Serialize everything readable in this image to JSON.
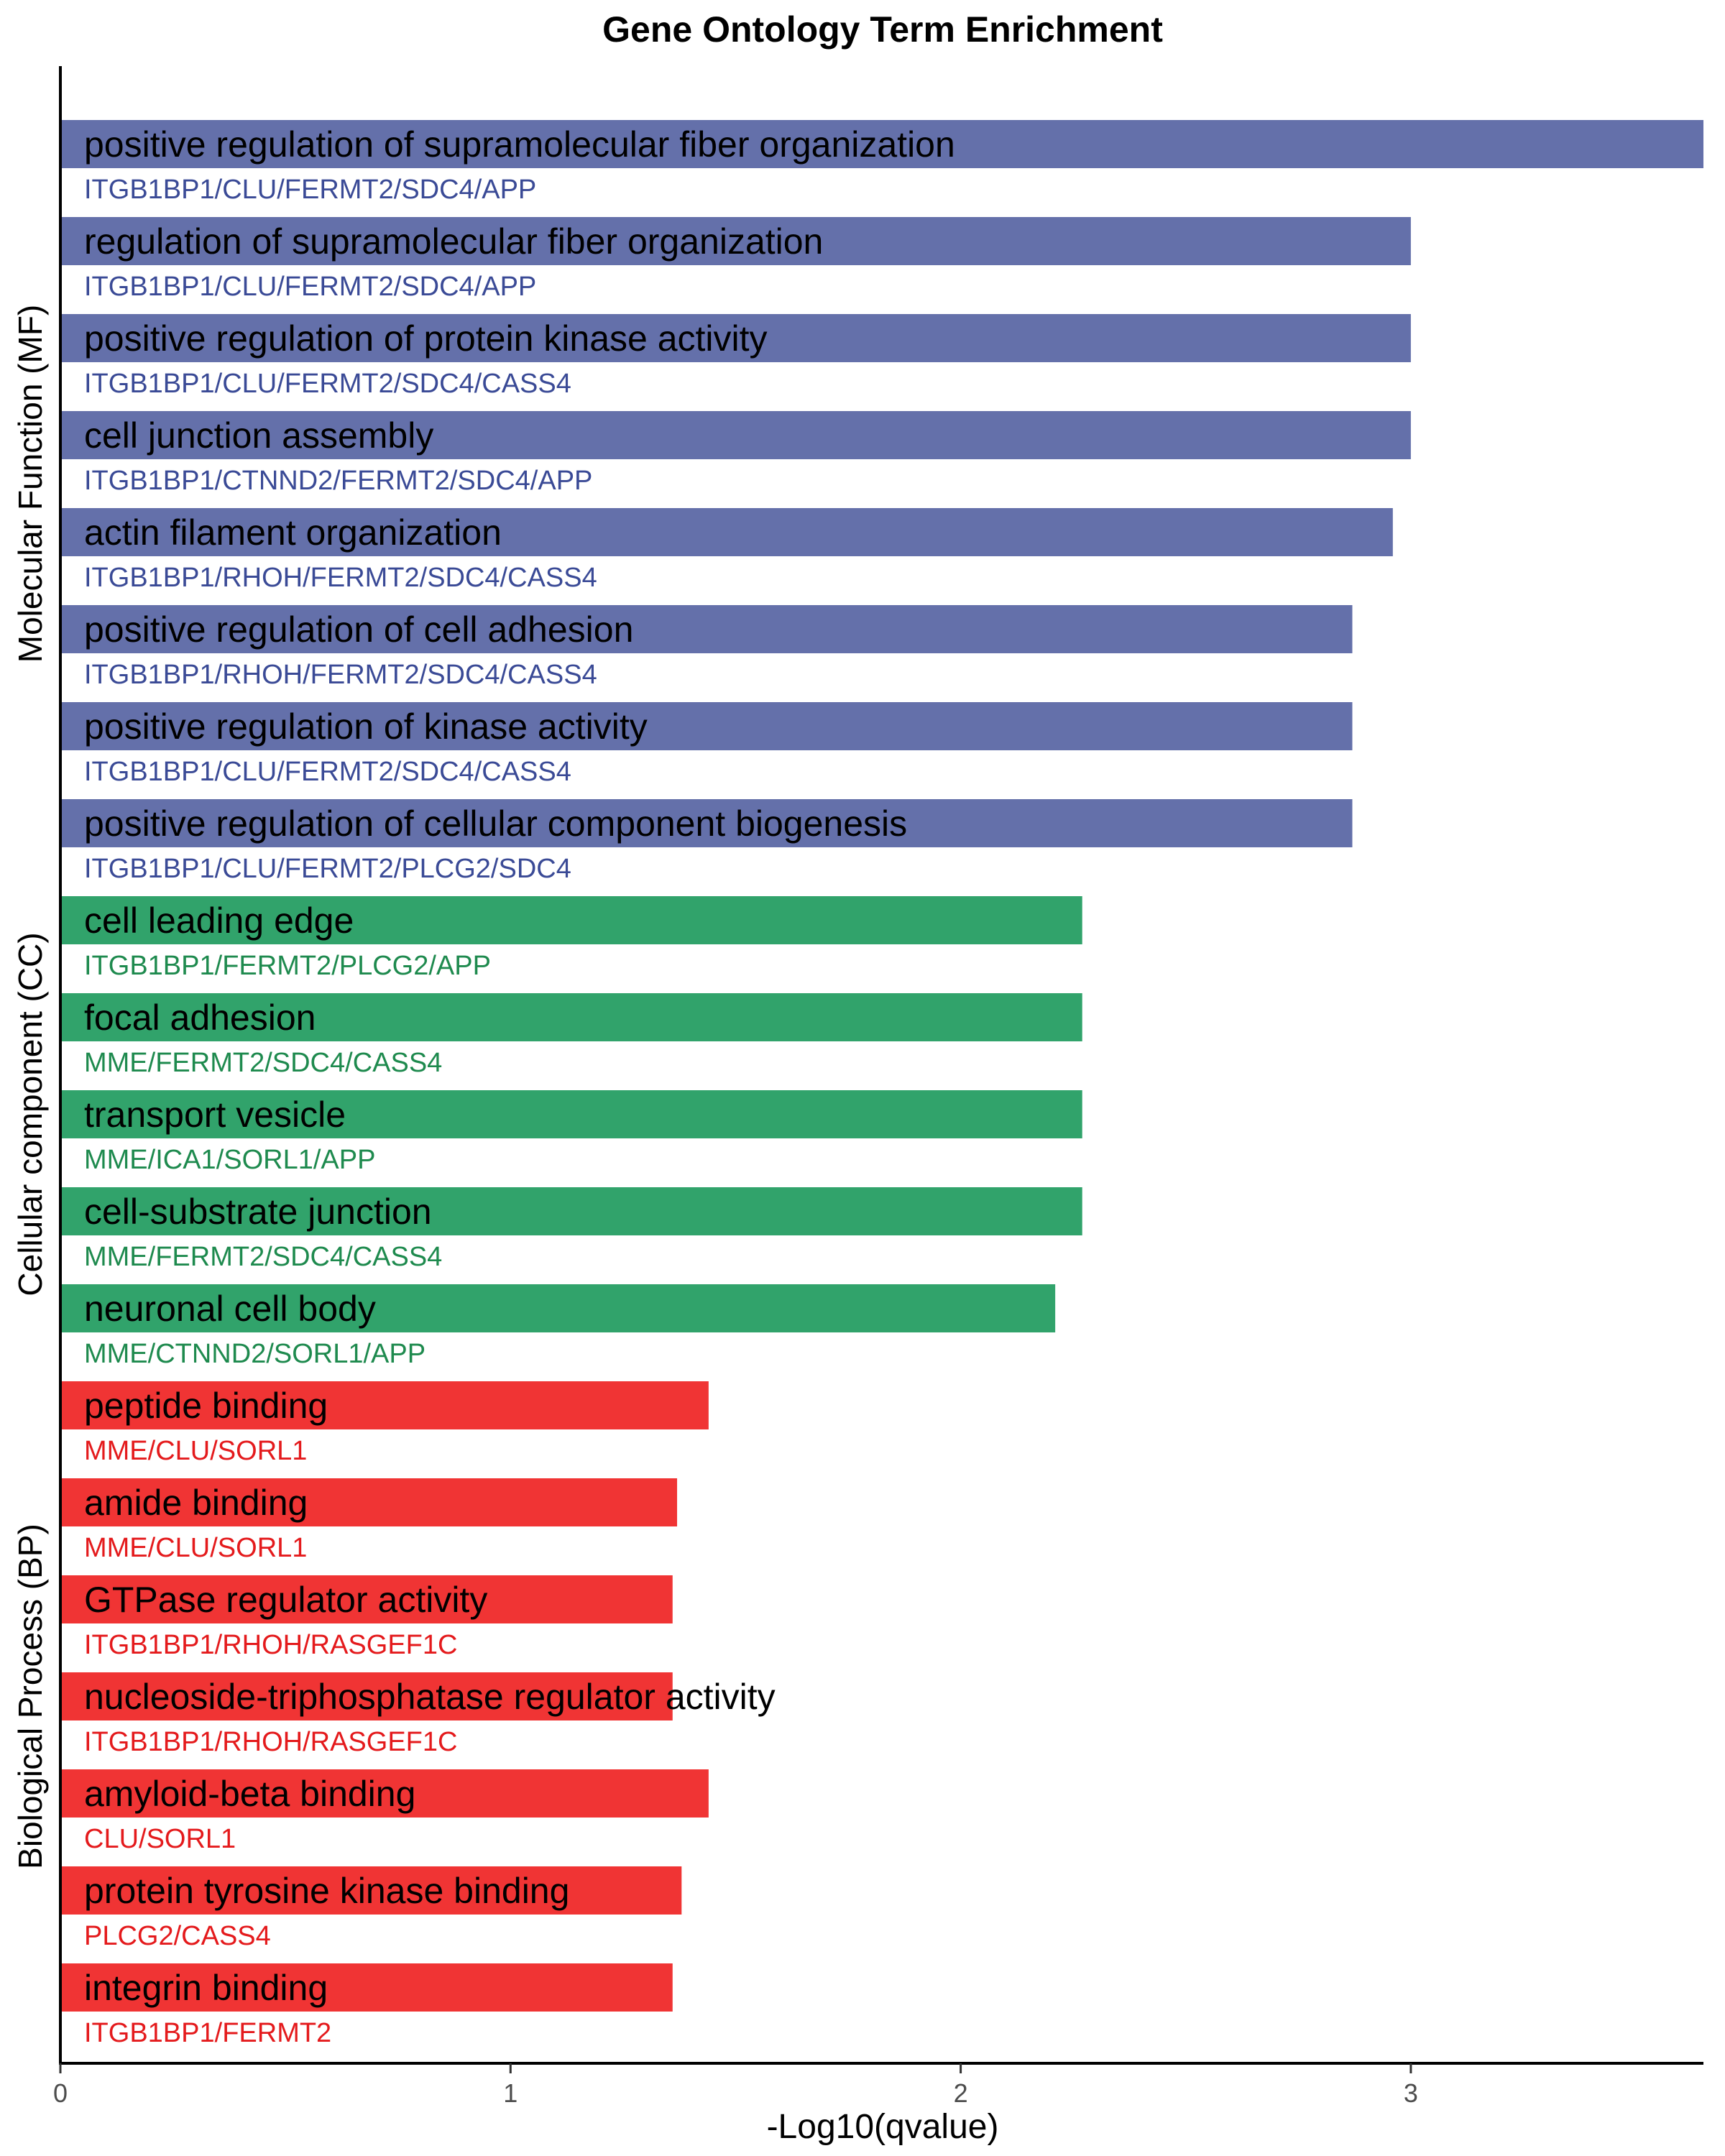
{
  "chart_data": {
    "type": "bar",
    "orientation": "horizontal",
    "title": "Gene Ontology Term Enrichment",
    "xlabel": "-Log10(qvalue)",
    "xlim": [
      0,
      3.65
    ],
    "xticks": [
      0,
      1,
      2,
      3
    ],
    "grid": false,
    "groups": [
      {
        "name": "Molecular Function (MF)",
        "bar_color": "#6470AA",
        "text_color": "#3A4A96"
      },
      {
        "name": "Cellular component (CC)",
        "bar_color": "#31A36B",
        "text_color": "#1E8A4E"
      },
      {
        "name": "Biological Process (BP)",
        "bar_color": "#F03434",
        "text_color": "#E41A1C"
      }
    ],
    "bars": [
      {
        "term": "positive regulation of supramolecular fiber organization",
        "genes": "ITGB1BP1/CLU/FERMT2/SDC4/APP",
        "value": 3.65,
        "group": 0
      },
      {
        "term": "regulation of supramolecular fiber organization",
        "genes": "ITGB1BP1/CLU/FERMT2/SDC4/APP",
        "value": 3.0,
        "group": 0
      },
      {
        "term": "positive regulation of protein kinase activity",
        "genes": "ITGB1BP1/CLU/FERMT2/SDC4/CASS4",
        "value": 3.0,
        "group": 0
      },
      {
        "term": "cell junction assembly",
        "genes": "ITGB1BP1/CTNND2/FERMT2/SDC4/APP",
        "value": 3.0,
        "group": 0
      },
      {
        "term": "actin filament organization",
        "genes": "ITGB1BP1/RHOH/FERMT2/SDC4/CASS4",
        "value": 2.96,
        "group": 0
      },
      {
        "term": "positive regulation of cell adhesion",
        "genes": "ITGB1BP1/RHOH/FERMT2/SDC4/CASS4",
        "value": 2.87,
        "group": 0
      },
      {
        "term": "positive regulation of kinase activity",
        "genes": "ITGB1BP1/CLU/FERMT2/SDC4/CASS4",
        "value": 2.87,
        "group": 0
      },
      {
        "term": "positive regulation of cellular component biogenesis",
        "genes": "ITGB1BP1/CLU/FERMT2/PLCG2/SDC4",
        "value": 2.87,
        "group": 0
      },
      {
        "term": "cell leading edge",
        "genes": "ITGB1BP1/FERMT2/PLCG2/APP",
        "value": 2.27,
        "group": 1
      },
      {
        "term": "focal adhesion",
        "genes": "MME/FERMT2/SDC4/CASS4",
        "value": 2.27,
        "group": 1
      },
      {
        "term": "transport vesicle",
        "genes": "MME/ICA1/SORL1/APP",
        "value": 2.27,
        "group": 1
      },
      {
        "term": "cell-substrate junction",
        "genes": "MME/FERMT2/SDC4/CASS4",
        "value": 2.27,
        "group": 1
      },
      {
        "term": "neuronal cell body",
        "genes": "MME/CTNND2/SORL1/APP",
        "value": 2.21,
        "group": 1
      },
      {
        "term": "peptide binding",
        "genes": "MME/CLU/SORL1",
        "value": 1.44,
        "group": 2
      },
      {
        "term": "amide binding",
        "genes": "MME/CLU/SORL1",
        "value": 1.37,
        "group": 2
      },
      {
        "term": "GTPase regulator activity",
        "genes": "ITGB1BP1/RHOH/RASGEF1C",
        "value": 1.36,
        "group": 2
      },
      {
        "term": "nucleoside-triphosphatase regulator activity",
        "genes": "ITGB1BP1/RHOH/RASGEF1C",
        "value": 1.36,
        "group": 2
      },
      {
        "term": "amyloid-beta binding",
        "genes": "CLU/SORL1",
        "value": 1.44,
        "group": 2
      },
      {
        "term": "protein tyrosine kinase binding",
        "genes": "PLCG2/CASS4",
        "value": 1.38,
        "group": 2
      },
      {
        "term": "integrin binding",
        "genes": "ITGB1BP1/FERMT2",
        "value": 1.36,
        "group": 2
      }
    ]
  }
}
